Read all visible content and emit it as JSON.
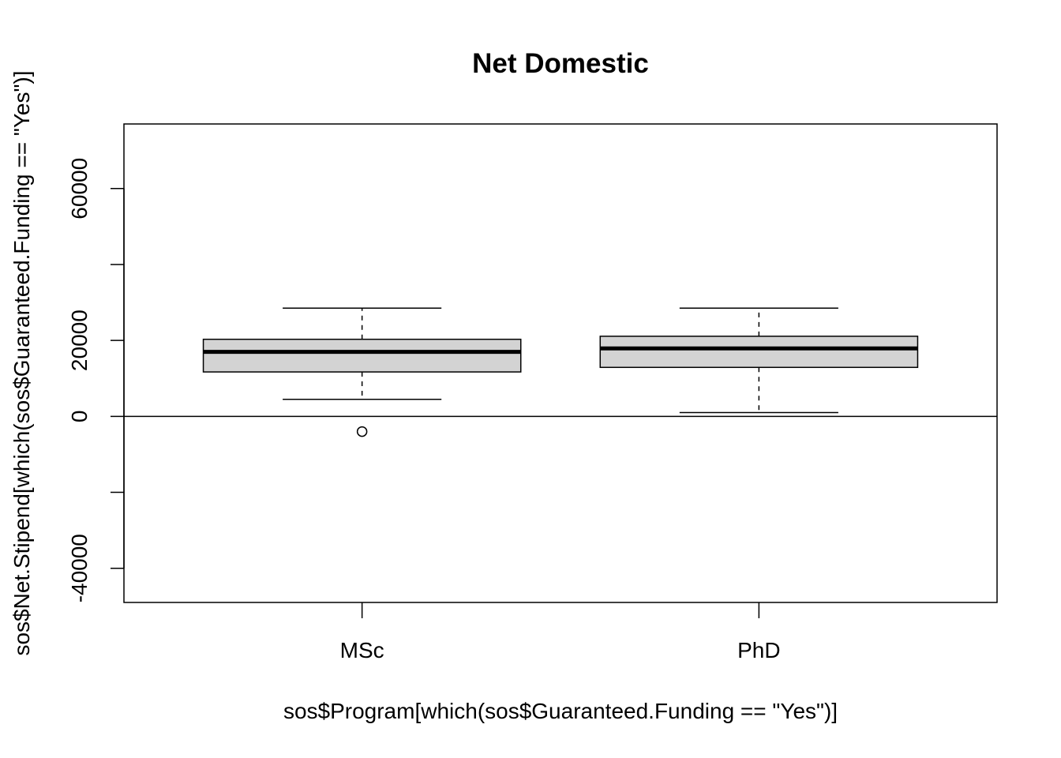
{
  "chart_data": {
    "type": "box",
    "title": "Net Domestic",
    "xlabel": "sos$Program[which(sos$Guaranteed.Funding == \"Yes\")]",
    "ylabel": "sos$Net.Stipend[which(sos$Guaranteed.Funding == \"Yes\")]",
    "ylim": [
      -49000,
      77000
    ],
    "y_ticks": [
      -40000,
      -20000,
      0,
      20000,
      40000,
      60000
    ],
    "y_tick_labels": [
      "-40000",
      "",
      "0",
      "20000",
      "",
      "60000"
    ],
    "reference_line_y": 0,
    "categories": [
      "MSc",
      "PhD"
    ],
    "boxes": [
      {
        "category": "MSc",
        "whisker_low": 4500,
        "q1": 11700,
        "median": 17000,
        "q3": 20300,
        "whisker_high": 28500,
        "outliers": [
          -4000
        ]
      },
      {
        "category": "PhD",
        "whisker_low": 1000,
        "q1": 12900,
        "median": 17900,
        "q3": 21100,
        "whisker_high": 28500,
        "outliers": []
      }
    ],
    "box_fill": "#d3d3d3",
    "line_color": "#000000",
    "grid": false,
    "legend": "none"
  }
}
